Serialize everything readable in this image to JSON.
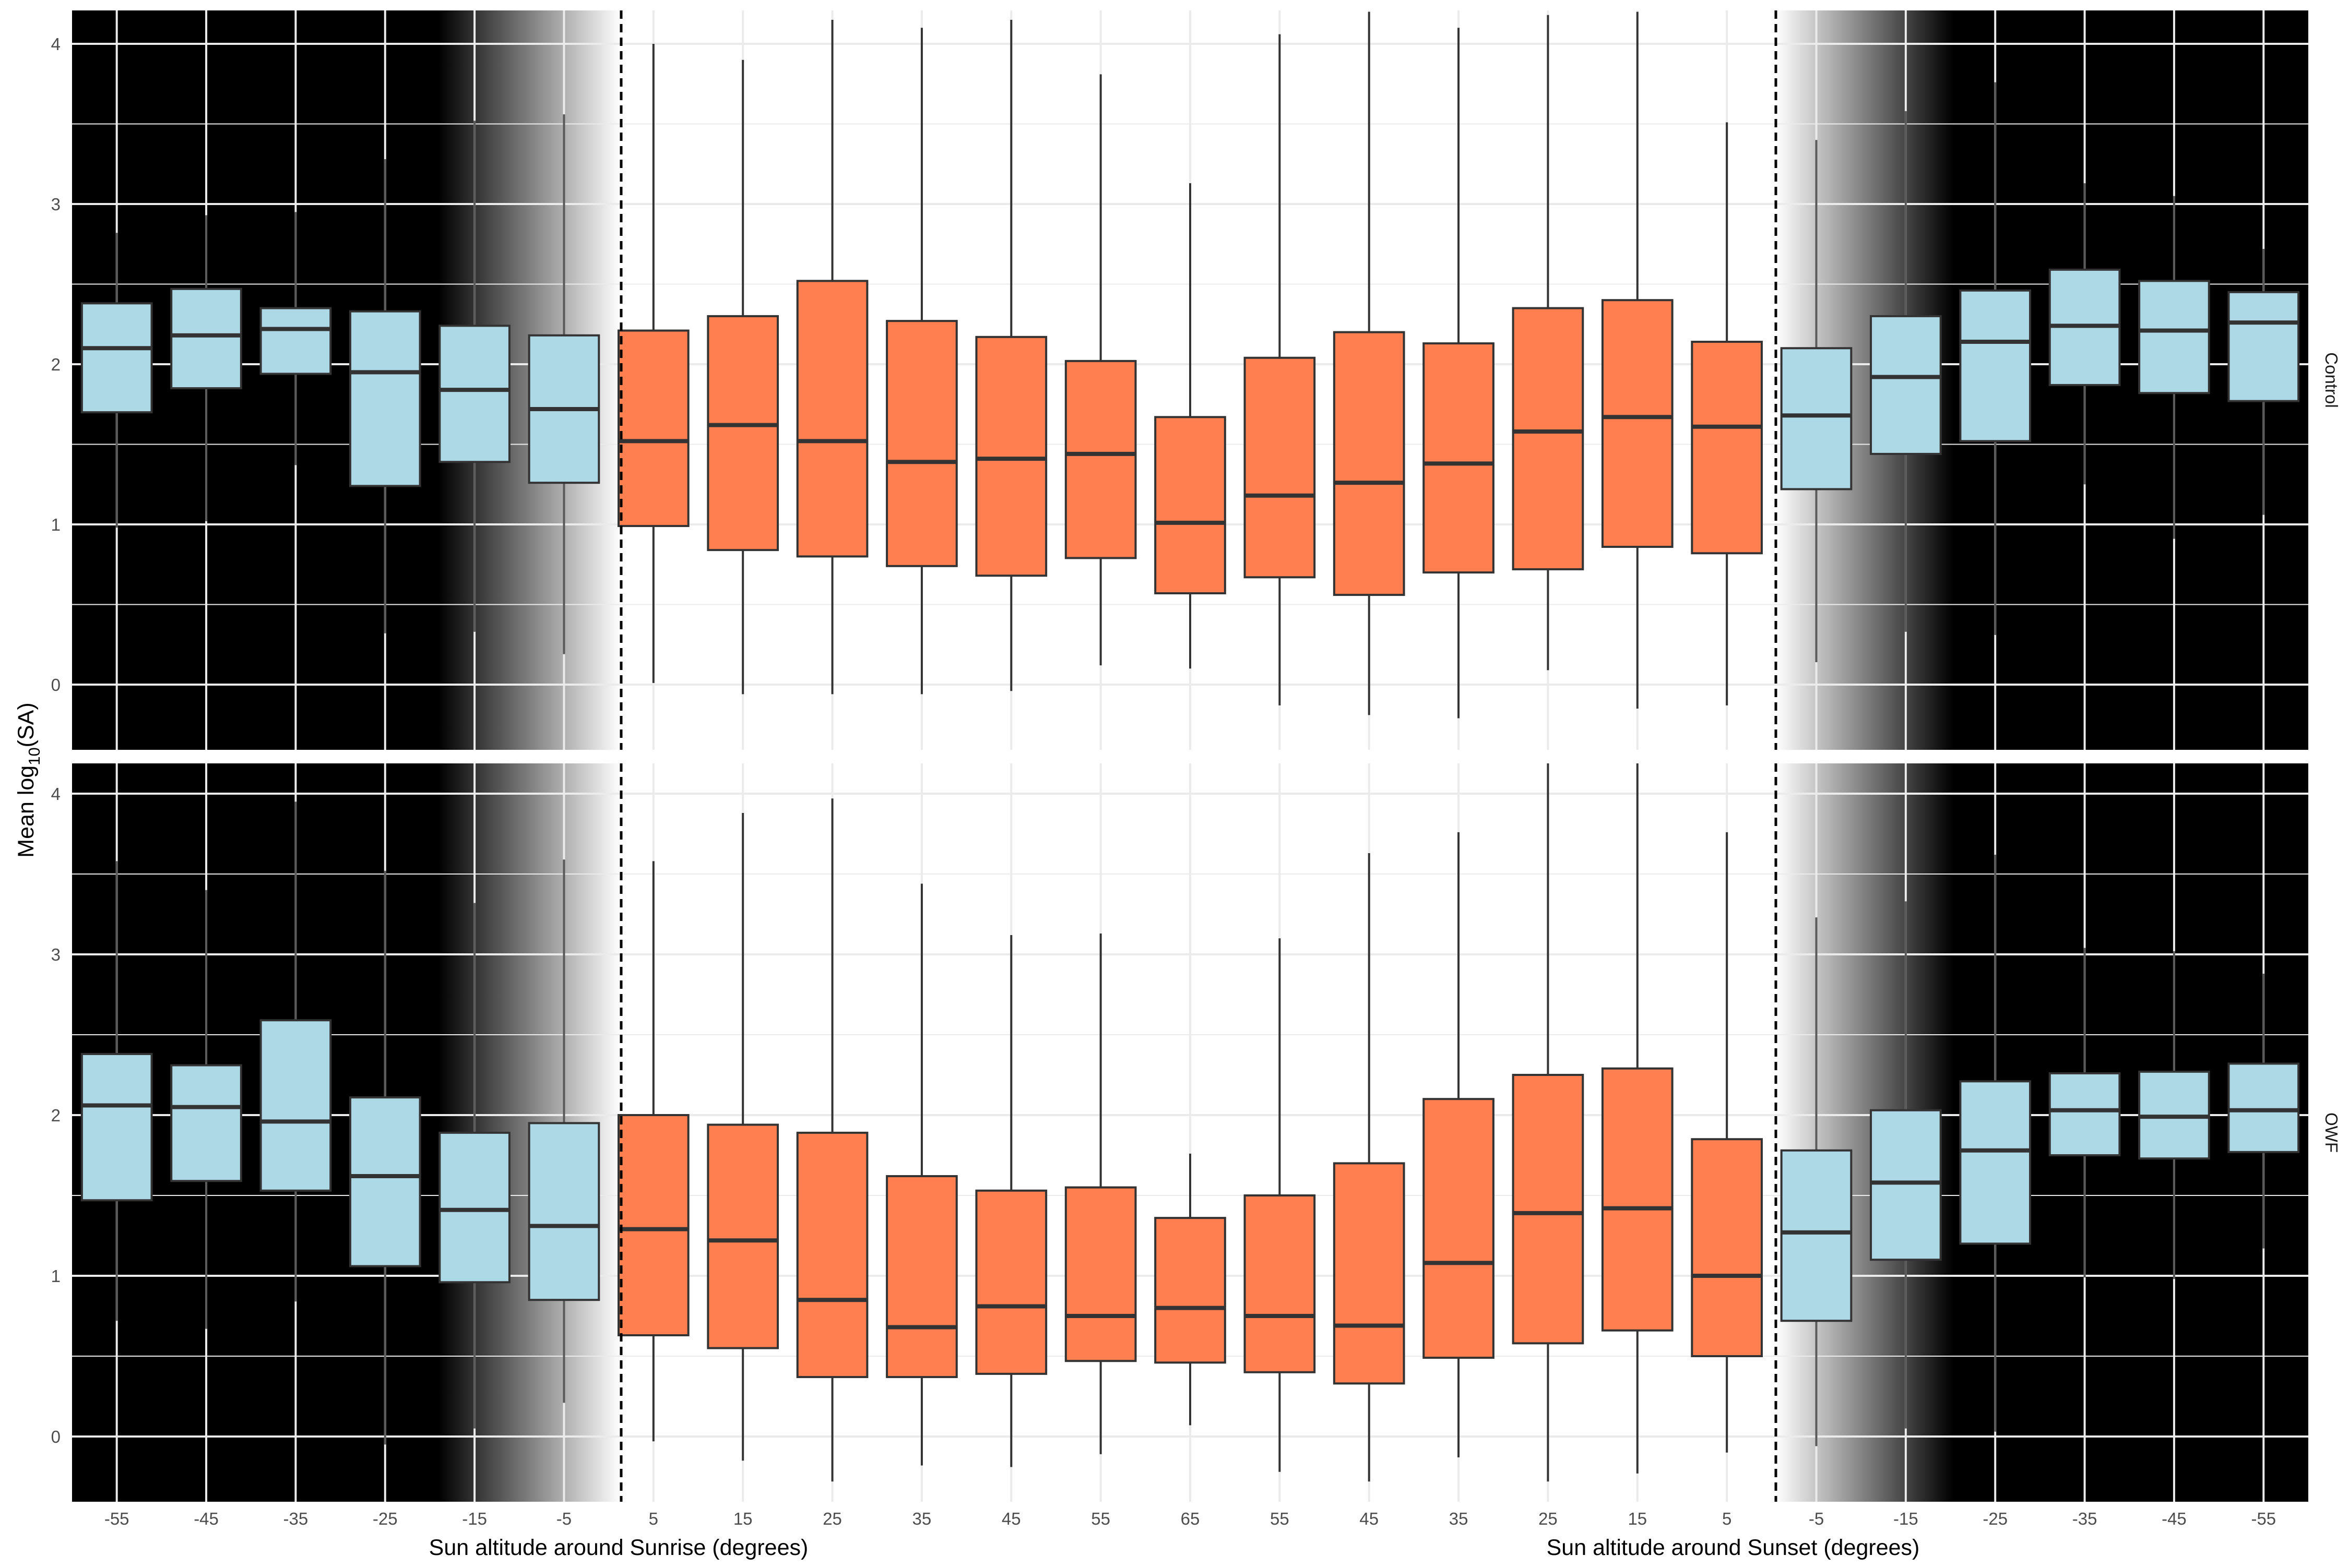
{
  "chart_data": {
    "type": "box",
    "ylabel_prefix": "Mean log",
    "ylabel_sub": "10",
    "ylabel_suffix": "(SA)",
    "xlabel_sunrise": "Sun altitude around Sunrise (degrees)",
    "xlabel_sunset": "Sun altitude around Sunset (degrees)",
    "categories": [
      "-55",
      "-45",
      "-35",
      "-25",
      "-15",
      "-5",
      "5",
      "15",
      "25",
      "35",
      "45",
      "55",
      "65",
      "55",
      "45",
      "35",
      "25",
      "15",
      "5",
      "-5",
      "-15",
      "-25",
      "-35",
      "-45",
      "-55"
    ],
    "category_phase": [
      "night",
      "night",
      "night",
      "night",
      "night",
      "night",
      "day",
      "day",
      "day",
      "day",
      "day",
      "day",
      "day",
      "day",
      "day",
      "day",
      "day",
      "day",
      "day",
      "night",
      "night",
      "night",
      "night",
      "night",
      "night"
    ],
    "ylim": [
      -0.4,
      4.2
    ],
    "yticks": [
      "0",
      "1",
      "2",
      "3",
      "4"
    ],
    "colors": {
      "night_box": "#add8e6",
      "day_box": "#ff7f50",
      "background_night": "#000000",
      "gridline": "#ebebeb",
      "median": "#333333"
    },
    "panels": [
      {
        "name": "Control",
        "boxes": [
          {
            "min": 0.98,
            "q1": 1.7,
            "median": 2.1,
            "q3": 2.38,
            "max": 2.82
          },
          {
            "min": 1.02,
            "q1": 1.85,
            "median": 2.18,
            "q3": 2.47,
            "max": 2.93
          },
          {
            "min": 1.37,
            "q1": 1.94,
            "median": 2.22,
            "q3": 2.35,
            "max": 2.95
          },
          {
            "min": 0.32,
            "q1": 1.24,
            "median": 1.95,
            "q3": 2.33,
            "max": 3.28
          },
          {
            "min": 0.33,
            "q1": 1.39,
            "median": 1.84,
            "q3": 2.24,
            "max": 3.52
          },
          {
            "min": 0.19,
            "q1": 1.26,
            "median": 1.72,
            "q3": 2.18,
            "max": 3.56
          },
          {
            "min": 0.01,
            "q1": 0.99,
            "median": 1.52,
            "q3": 2.21,
            "max": 4.0
          },
          {
            "min": -0.06,
            "q1": 0.84,
            "median": 1.62,
            "q3": 2.3,
            "max": 3.9
          },
          {
            "min": -0.06,
            "q1": 0.8,
            "median": 1.52,
            "q3": 2.52,
            "max": 4.15
          },
          {
            "min": -0.06,
            "q1": 0.74,
            "median": 1.39,
            "q3": 2.27,
            "max": 4.1
          },
          {
            "min": -0.04,
            "q1": 0.68,
            "median": 1.41,
            "q3": 2.17,
            "max": 4.15
          },
          {
            "min": 0.12,
            "q1": 0.79,
            "median": 1.44,
            "q3": 2.02,
            "max": 3.81
          },
          {
            "min": 0.1,
            "q1": 0.57,
            "median": 1.01,
            "q3": 1.67,
            "max": 3.13
          },
          {
            "min": -0.13,
            "q1": 0.67,
            "median": 1.18,
            "q3": 2.04,
            "max": 4.06
          },
          {
            "min": -0.19,
            "q1": 0.56,
            "median": 1.26,
            "q3": 2.2,
            "max": 4.2
          },
          {
            "min": -0.21,
            "q1": 0.7,
            "median": 1.38,
            "q3": 2.13,
            "max": 4.1
          },
          {
            "min": 0.09,
            "q1": 0.72,
            "median": 1.58,
            "q3": 2.35,
            "max": 4.18
          },
          {
            "min": -0.15,
            "q1": 0.86,
            "median": 1.67,
            "q3": 2.4,
            "max": 4.2
          },
          {
            "min": -0.13,
            "q1": 0.82,
            "median": 1.61,
            "q3": 2.14,
            "max": 3.51
          },
          {
            "min": 0.14,
            "q1": 1.22,
            "median": 1.68,
            "q3": 2.1,
            "max": 3.4
          },
          {
            "min": 0.33,
            "q1": 1.44,
            "median": 1.92,
            "q3": 2.3,
            "max": 3.58
          },
          {
            "min": 0.31,
            "q1": 1.52,
            "median": 2.14,
            "q3": 2.46,
            "max": 3.76
          },
          {
            "min": 1.25,
            "q1": 1.87,
            "median": 2.24,
            "q3": 2.59,
            "max": 3.13
          },
          {
            "min": 0.91,
            "q1": 1.82,
            "median": 2.21,
            "q3": 2.52,
            "max": 3.05
          },
          {
            "min": 1.06,
            "q1": 1.77,
            "median": 2.26,
            "q3": 2.45,
            "max": 2.72
          }
        ]
      },
      {
        "name": "OWF",
        "boxes": [
          {
            "min": 0.72,
            "q1": 1.47,
            "median": 2.06,
            "q3": 2.38,
            "max": 3.58
          },
          {
            "min": 0.67,
            "q1": 1.59,
            "median": 2.05,
            "q3": 2.31,
            "max": 3.4
          },
          {
            "min": 0.84,
            "q1": 1.53,
            "median": 1.96,
            "q3": 2.59,
            "max": 3.95
          },
          {
            "min": -0.05,
            "q1": 1.06,
            "median": 1.62,
            "q3": 2.11,
            "max": 3.52
          },
          {
            "min": 0.05,
            "q1": 0.96,
            "median": 1.41,
            "q3": 1.89,
            "max": 3.32
          },
          {
            "min": 0.21,
            "q1": 0.85,
            "median": 1.31,
            "q3": 1.95,
            "max": 3.59
          },
          {
            "min": -0.03,
            "q1": 0.63,
            "median": 1.29,
            "q3": 2.0,
            "max": 3.58
          },
          {
            "min": -0.15,
            "q1": 0.55,
            "median": 1.22,
            "q3": 1.94,
            "max": 3.88
          },
          {
            "min": -0.28,
            "q1": 0.37,
            "median": 0.85,
            "q3": 1.89,
            "max": 3.97
          },
          {
            "min": -0.18,
            "q1": 0.37,
            "median": 0.68,
            "q3": 1.62,
            "max": 3.44
          },
          {
            "min": -0.19,
            "q1": 0.39,
            "median": 0.81,
            "q3": 1.53,
            "max": 3.12
          },
          {
            "min": -0.11,
            "q1": 0.47,
            "median": 0.75,
            "q3": 1.55,
            "max": 3.13
          },
          {
            "min": 0.07,
            "q1": 0.46,
            "median": 0.8,
            "q3": 1.36,
            "max": 1.76
          },
          {
            "min": -0.22,
            "q1": 0.4,
            "median": 0.75,
            "q3": 1.5,
            "max": 3.1
          },
          {
            "min": -0.28,
            "q1": 0.33,
            "median": 0.69,
            "q3": 1.7,
            "max": 3.63
          },
          {
            "min": -0.13,
            "q1": 0.49,
            "median": 1.08,
            "q3": 2.1,
            "max": 3.76
          },
          {
            "min": -0.28,
            "q1": 0.58,
            "median": 1.39,
            "q3": 2.25,
            "max": 4.2
          },
          {
            "min": -0.23,
            "q1": 0.66,
            "median": 1.42,
            "q3": 2.29,
            "max": 4.2
          },
          {
            "min": -0.1,
            "q1": 0.5,
            "median": 1.0,
            "q3": 1.85,
            "max": 3.76
          },
          {
            "min": -0.06,
            "q1": 0.72,
            "median": 1.27,
            "q3": 1.78,
            "max": 3.23
          },
          {
            "min": 0.05,
            "q1": 1.1,
            "median": 1.58,
            "q3": 2.03,
            "max": 3.33
          },
          {
            "min": 0.03,
            "q1": 1.2,
            "median": 1.78,
            "q3": 2.21,
            "max": 3.62
          },
          {
            "min": 0.99,
            "q1": 1.75,
            "median": 2.03,
            "q3": 2.26,
            "max": 3.04
          },
          {
            "min": 0.98,
            "q1": 1.73,
            "median": 1.99,
            "q3": 2.27,
            "max": 3.02
          },
          {
            "min": 1.17,
            "q1": 1.77,
            "median": 2.03,
            "q3": 2.32,
            "max": 2.88
          }
        ]
      }
    ]
  }
}
